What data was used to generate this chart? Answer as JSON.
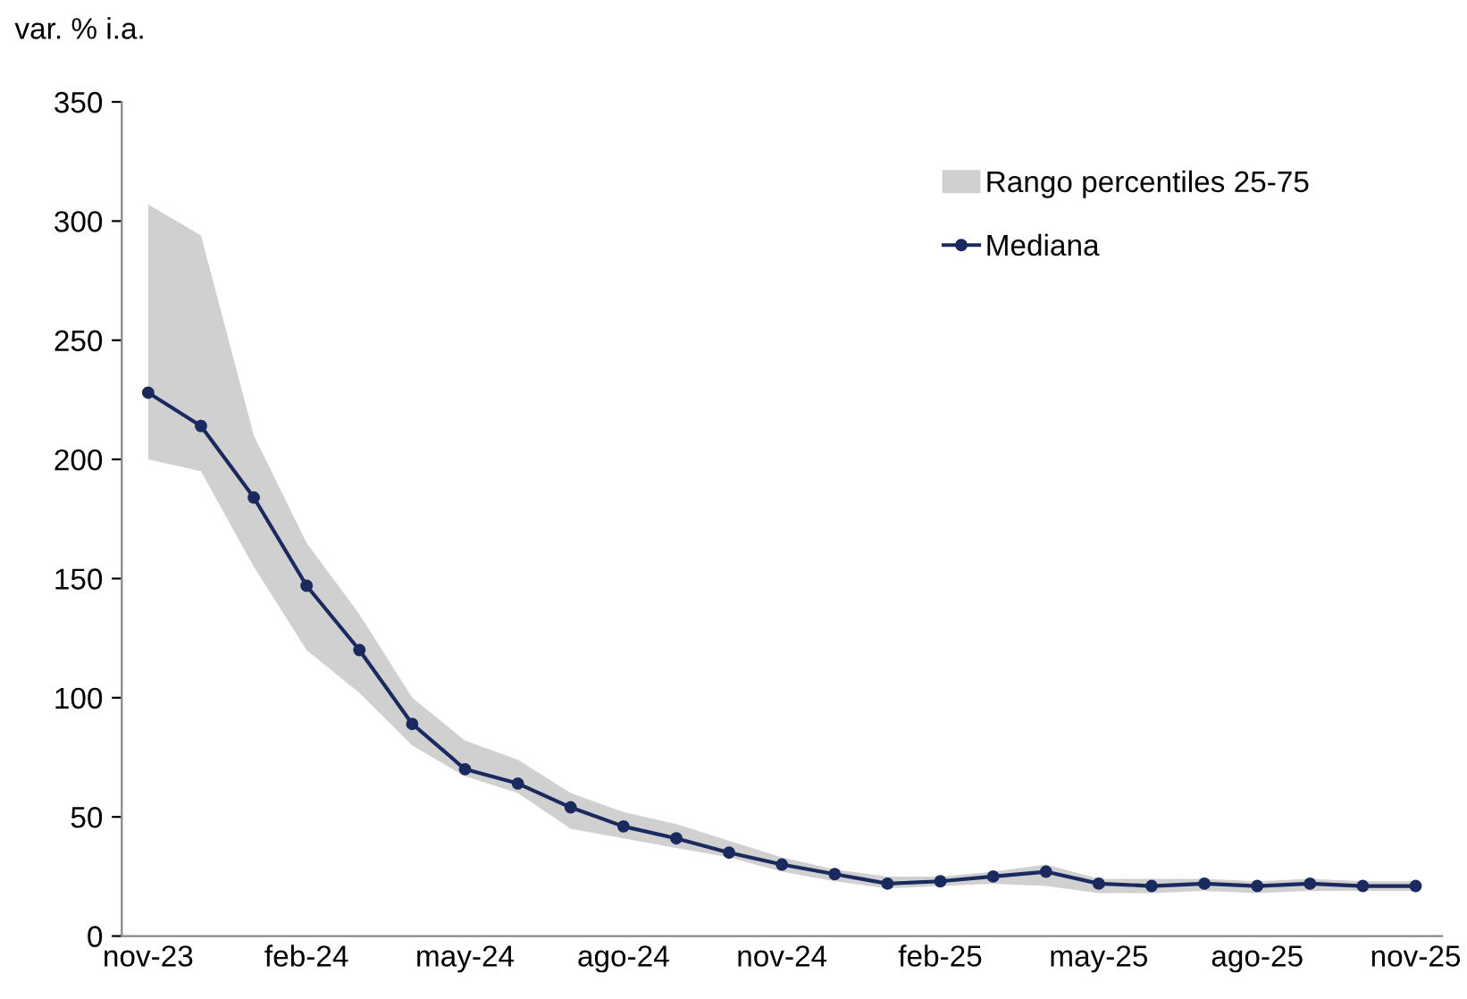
{
  "chart_data": {
    "type": "line",
    "ylabel": "var. % i.a.",
    "categories": [
      "nov-23",
      null,
      null,
      "feb-24",
      null,
      null,
      "may-24",
      null,
      null,
      "ago-24",
      null,
      null,
      "nov-24",
      null,
      null,
      "feb-25",
      null,
      null,
      "may-25",
      null,
      null,
      "ago-25",
      null,
      null,
      "nov-25"
    ],
    "series": [
      {
        "name": "Rango percentiles 25-75",
        "type": "area",
        "color": "#d0d0d0",
        "values": [
          null,
          null,
          null,
          null,
          null,
          null,
          null,
          null,
          null,
          null,
          null,
          null,
          null,
          null,
          null,
          null,
          null,
          null,
          null,
          null,
          null,
          null,
          null,
          null,
          null
        ],
        "lower": [
          200,
          195,
          155,
          120,
          102,
          80,
          67,
          60,
          45,
          41,
          37,
          33,
          27,
          23,
          20,
          21,
          22,
          21,
          18,
          18,
          19,
          18,
          19,
          19,
          19
        ],
        "upper": [
          307,
          294,
          210,
          165,
          135,
          100,
          82,
          74,
          60,
          52,
          47,
          40,
          33,
          28,
          25,
          25,
          27,
          30,
          24,
          24,
          24,
          23,
          24,
          23,
          23
        ]
      },
      {
        "name": "Mediana",
        "color": "#1a2a5e",
        "values": [
          228,
          214,
          184,
          147,
          120,
          89,
          70,
          64,
          54,
          46,
          41,
          35,
          30,
          26,
          22,
          23,
          25,
          27,
          22,
          21,
          22,
          21,
          22,
          21,
          21
        ]
      }
    ],
    "ylim": [
      0,
      350
    ],
    "yticks": [
      0,
      50,
      100,
      150,
      200,
      250,
      300,
      350
    ],
    "marker": "circle",
    "line_style": "solid",
    "grid": false,
    "legend": "top right"
  }
}
